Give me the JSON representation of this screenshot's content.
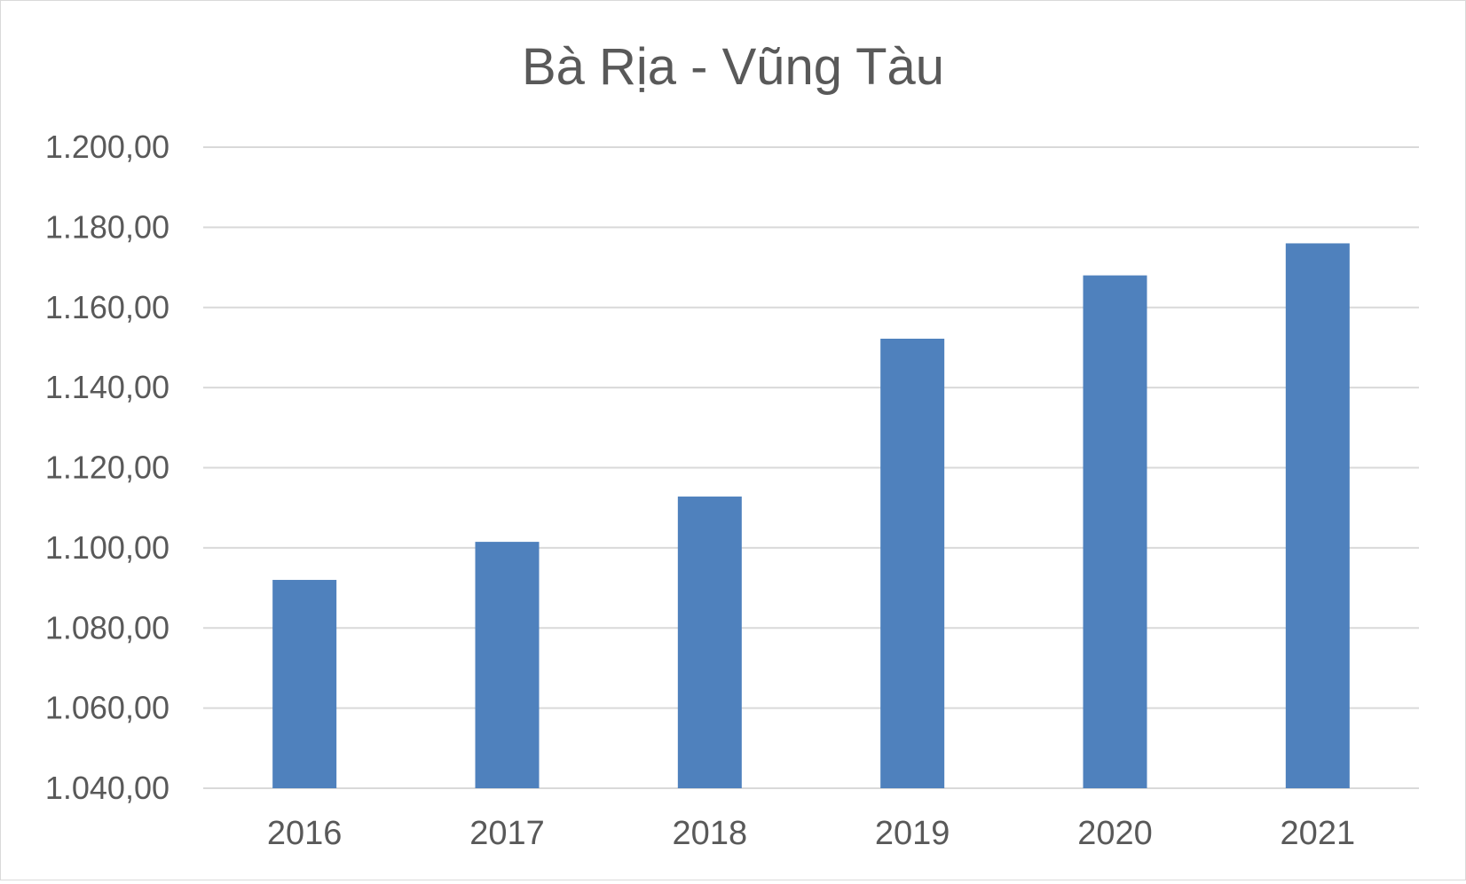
{
  "chart_data": {
    "type": "bar",
    "title": "Bà Rịa - Vũng Tàu",
    "categories": [
      "2016",
      "2017",
      "2018",
      "2019",
      "2020",
      "2021"
    ],
    "values": [
      1092.0,
      1101.5,
      1112.8,
      1152.2,
      1168.0,
      1176.0
    ],
    "ylim": [
      1040,
      1200
    ],
    "yticks": [
      "1.040,00",
      "1.060,00",
      "1.080,00",
      "1.100,00",
      "1.120,00",
      "1.140,00",
      "1.160,00",
      "1.180,00",
      "1.200,00"
    ],
    "xlabel": "",
    "ylabel": "",
    "grid": true,
    "legend": false,
    "bar_color": "#4f81bd",
    "grid_color": "#d9d9d9",
    "text_color": "#595959"
  }
}
